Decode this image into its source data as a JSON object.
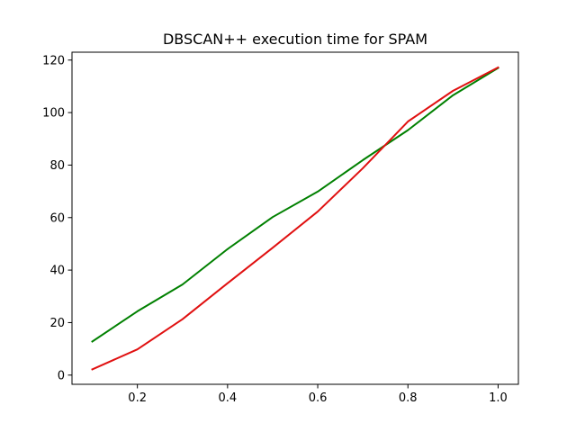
{
  "chart_data": {
    "type": "line",
    "title": "DBSCAN++  execution time for SPAM",
    "xlabel": "",
    "ylabel": "",
    "xlim": [
      0.055,
      1.045
    ],
    "ylim": [
      -3.5,
      123
    ],
    "grid": false,
    "x_ticks": [
      0.2,
      0.4,
      0.6,
      0.8,
      1.0
    ],
    "x_tick_labels": [
      "0.2",
      "0.4",
      "0.6",
      "0.8",
      "1.0"
    ],
    "y_ticks": [
      0,
      20,
      40,
      60,
      80,
      100,
      120
    ],
    "y_tick_labels": [
      "0",
      "20",
      "40",
      "60",
      "80",
      "100",
      "120"
    ],
    "x": [
      0.1,
      0.2,
      0.3,
      0.4,
      0.5,
      0.6,
      0.7,
      0.8,
      0.9,
      1.0
    ],
    "series": [
      {
        "color": "#008000",
        "values": [
          12.8,
          24.3,
          34.5,
          48.0,
          60.2,
          69.9,
          81.9,
          93.3,
          106.6,
          117.0
        ]
      },
      {
        "color": "#e01010",
        "values": [
          2.2,
          9.8,
          21.3,
          35.0,
          48.5,
          62.3,
          78.8,
          96.6,
          108.3,
          117.2
        ]
      }
    ]
  }
}
